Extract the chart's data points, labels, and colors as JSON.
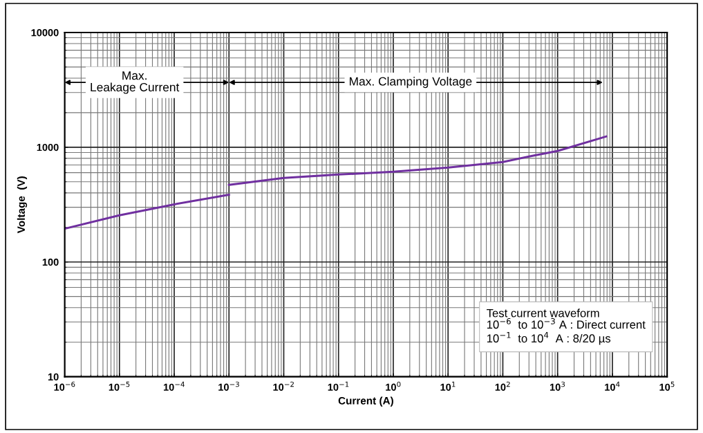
{
  "chart_data": {
    "type": "line",
    "xlabel": "Current (A)",
    "ylabel": "Voltage  (V)",
    "log": "xy",
    "series": [
      {
        "color": "#7030a0",
        "x": [
          1e-06,
          1e-05,
          0.0001,
          0.001
        ],
        "values": [
          195,
          255,
          318,
          386
        ]
      },
      {
        "color": "#7030a0",
        "x": [
          0.001,
          0.01,
          0.1,
          1,
          10,
          100,
          300,
          1000,
          7700
        ],
        "values": [
          470,
          540,
          578,
          611,
          665,
          743,
          830,
          927,
          1240
        ]
      }
    ],
    "xlim": [
      1e-06,
      100000.0
    ],
    "ylim": [
      10,
      10000
    ],
    "xticks": [
      {
        "value": 1e-06,
        "label": "10$^{−6}$"
      },
      {
        "value": 1e-05,
        "label": "10$^{−5}$"
      },
      {
        "value": 0.0001,
        "label": "10$^{−4}$"
      },
      {
        "value": 0.001,
        "label": "10$^{−3}$"
      },
      {
        "value": 0.01,
        "label": "10$^{−2}$"
      },
      {
        "value": 0.1,
        "label": "10$^{−1}$"
      },
      {
        "value": 1,
        "label": "10$^{0}$"
      },
      {
        "value": 10,
        "label": "10$^{1}$"
      },
      {
        "value": 100,
        "label": "10$^{2}$"
      },
      {
        "value": 1000,
        "label": "10$^{3}$"
      },
      {
        "value": 10000,
        "label": "10$^{4}$"
      },
      {
        "value": 100000,
        "label": "10$^{5}$"
      }
    ],
    "yticks": [
      10,
      100,
      1000,
      10000
    ],
    "grid": true,
    "line_style": "solid",
    "marker": "none",
    "annotations": [
      "Max.\nLeakage Current",
      "Max. Clamping Voltage",
      "Test current waveform\n10$^{−6}$  to 10$^{−3}$ A : Direct current\n10$^{−1}$  to 10$^{4}$  A : 8/20 µs"
    ]
  }
}
